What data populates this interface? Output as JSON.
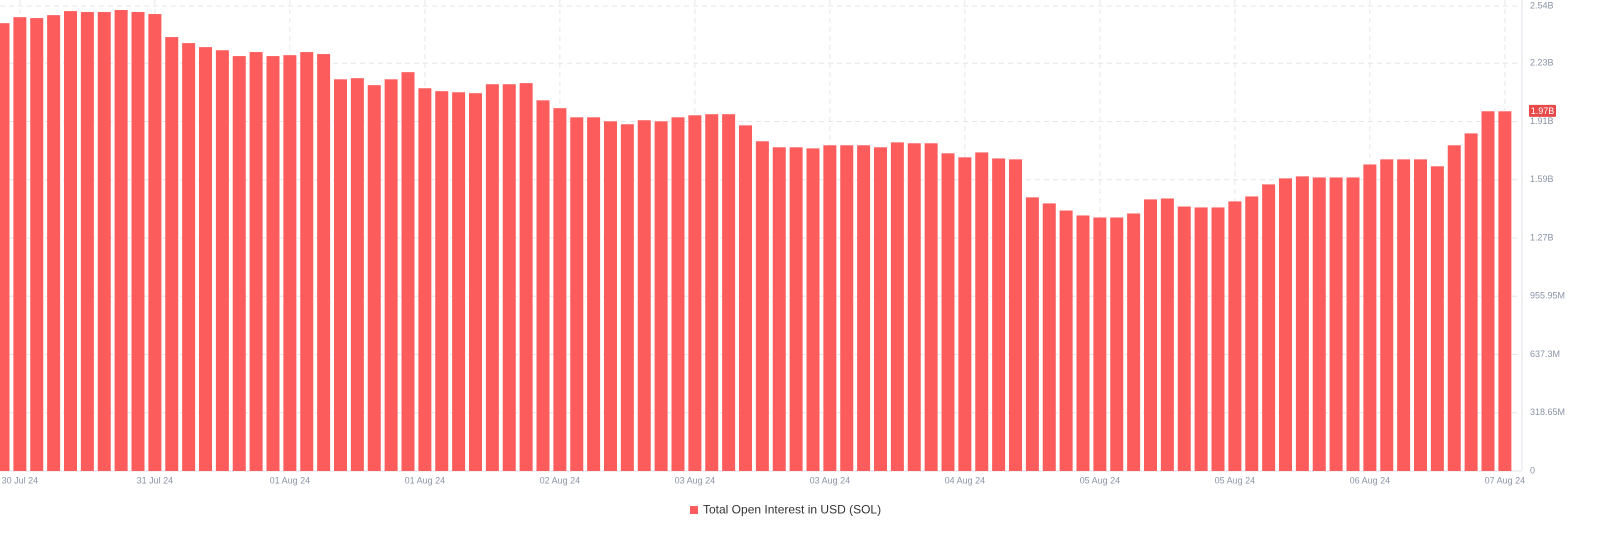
{
  "chart_data": {
    "type": "bar",
    "color": "#fc5c5c",
    "series_name": "Total Open Interest in USD (SOL)",
    "categories": [
      null,
      "30 Jul 24",
      null,
      null,
      null,
      null,
      null,
      null,
      null,
      "31 Jul 24",
      null,
      null,
      null,
      null,
      null,
      null,
      null,
      "01 Aug 24",
      null,
      null,
      null,
      null,
      null,
      null,
      null,
      "01 Aug 24",
      null,
      null,
      null,
      null,
      null,
      null,
      null,
      "02 Aug 24",
      null,
      null,
      null,
      null,
      null,
      null,
      null,
      "03 Aug 24",
      null,
      null,
      null,
      null,
      null,
      null,
      null,
      "03 Aug 24",
      null,
      null,
      null,
      null,
      null,
      null,
      null,
      "04 Aug 24",
      null,
      null,
      null,
      null,
      null,
      null,
      null,
      "05 Aug 24",
      null,
      null,
      null,
      null,
      null,
      null,
      null,
      "05 Aug 24",
      null,
      null,
      null,
      null,
      null,
      null,
      null,
      "06 Aug 24",
      null,
      null,
      null,
      null,
      null,
      null,
      null,
      "07 Aug 24"
    ],
    "values": [
      2450000000,
      2483000000,
      2478000000,
      2494000000,
      2516000000,
      2511000000,
      2511000000,
      2522000000,
      2511000000,
      2500000000,
      2374000000,
      2341000000,
      2319000000,
      2302000000,
      2270000000,
      2292000000,
      2270000000,
      2275000000,
      2292000000,
      2281000000,
      2143000000,
      2149000000,
      2111000000,
      2143000000,
      2182000000,
      2094000000,
      2078000000,
      2072000000,
      2067000000,
      2116000000,
      2116000000,
      2122000000,
      2028000000,
      1985000000,
      1935000000,
      1935000000,
      1913000000,
      1897000000,
      1919000000,
      1913000000,
      1935000000,
      1946000000,
      1952000000,
      1952000000,
      1891000000,
      1804000000,
      1771000000,
      1771000000,
      1765000000,
      1782000000,
      1782000000,
      1782000000,
      1771000000,
      1798000000,
      1793000000,
      1793000000,
      1738000000,
      1716000000,
      1743000000,
      1710000000,
      1705000000,
      1497000000,
      1464000000,
      1425000000,
      1398000000,
      1387000000,
      1387000000,
      1409000000,
      1486000000,
      1491000000,
      1447000000,
      1442000000,
      1442000000,
      1475000000,
      1502000000,
      1568000000,
      1601000000,
      1612000000,
      1606000000,
      1606000000,
      1606000000,
      1677000000,
      1705000000,
      1705000000,
      1705000000,
      1667000000,
      1782000000,
      1847000000,
      1968000000,
      1968000000
    ],
    "ylim": [
      0,
      2544000000
    ],
    "yticks": [
      0,
      {
        "value": 318650000,
        "label": "318.65M"
      },
      {
        "value": 637300000,
        "label": "637.3M"
      },
      {
        "value": 955950000,
        "label": "955.95M"
      },
      {
        "value": 1274600000,
        "label": "1.27B"
      },
      {
        "value": 1593250000,
        "label": "1.59B"
      },
      {
        "value": 1911900000,
        "label": "1.91B"
      },
      {
        "value": 2230550000,
        "label": "2.23B"
      },
      {
        "value": 2544000000,
        "label": "2.54B"
      }
    ],
    "last_value_tag": {
      "value": 1970000000,
      "label": "1.97B"
    },
    "grid": true,
    "legend": "bottom"
  }
}
